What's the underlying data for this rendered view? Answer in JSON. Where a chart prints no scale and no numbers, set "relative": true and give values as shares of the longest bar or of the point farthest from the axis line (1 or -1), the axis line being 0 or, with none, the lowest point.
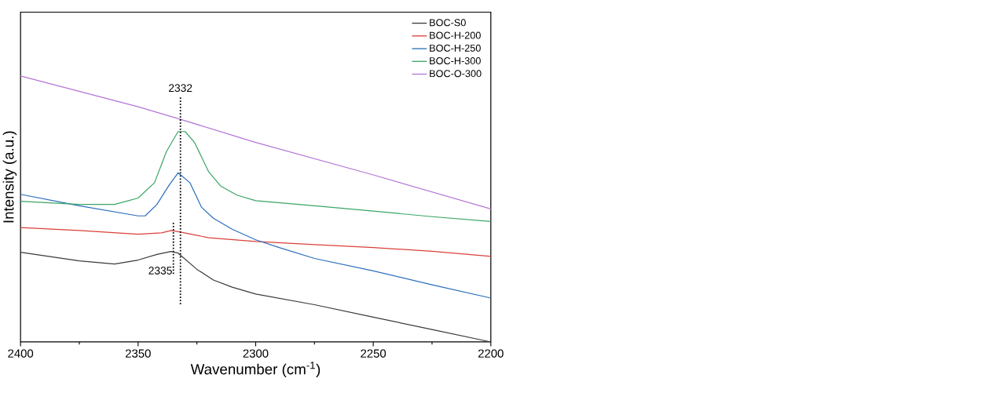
{
  "chart_data": {
    "type": "line",
    "xlabel": "Wavenumber (cm$^{-1}$)",
    "ylabel": "Intensity (a.u.)",
    "relative": true,
    "xlim": [
      2400,
      2200
    ],
    "xticks": [
      2400,
      2350,
      2300,
      2250,
      2200
    ],
    "legend": "top right",
    "ref_lines": [
      {
        "axis": "x",
        "value": 2332,
        "label": "2332",
        "line_style": "dotted"
      },
      {
        "axis": "x",
        "value": 2335,
        "label": "2335",
        "line_style": "dotted"
      }
    ],
    "series": [
      {
        "name": "BOC-S0",
        "color": "#3a3a3a",
        "x": [
          2400,
          2375,
          2360,
          2350,
          2342,
          2336,
          2333,
          2325,
          2318,
          2310,
          2300,
          2275,
          2250,
          2225,
          2200
        ],
        "values": [
          0.337,
          0.305,
          0.293,
          0.308,
          0.329,
          0.34,
          0.334,
          0.273,
          0.233,
          0.206,
          0.18,
          0.14,
          0.093,
          0.047,
          0.0
        ]
      },
      {
        "name": "BOC-H-200",
        "color": "#d9403a",
        "x": [
          2400,
          2375,
          2350,
          2340,
          2336,
          2332,
          2320,
          2300,
          2275,
          2250,
          2225,
          2200
        ],
        "values": [
          0.43,
          0.419,
          0.405,
          0.41,
          0.419,
          0.413,
          0.392,
          0.378,
          0.366,
          0.355,
          0.341,
          0.322
        ]
      },
      {
        "name": "BOC-H-250",
        "color": "#2a6ebb",
        "x": [
          2400,
          2375,
          2350,
          2347,
          2342,
          2337,
          2333,
          2328,
          2323,
          2318,
          2310,
          2300,
          2290,
          2275,
          2250,
          2225,
          2200
        ],
        "values": [
          0.555,
          0.512,
          0.474,
          0.474,
          0.517,
          0.587,
          0.636,
          0.599,
          0.506,
          0.465,
          0.424,
          0.384,
          0.355,
          0.314,
          0.267,
          0.215,
          0.165
        ]
      },
      {
        "name": "BOC-H-300",
        "color": "#3aa565",
        "x": [
          2400,
          2375,
          2360,
          2350,
          2343,
          2338,
          2333,
          2330,
          2326,
          2320,
          2315,
          2308,
          2300,
          2275,
          2250,
          2225,
          2200
        ],
        "values": [
          0.529,
          0.517,
          0.517,
          0.541,
          0.599,
          0.715,
          0.791,
          0.791,
          0.75,
          0.64,
          0.587,
          0.552,
          0.531,
          0.512,
          0.492,
          0.471,
          0.453
        ]
      },
      {
        "name": "BOC-O-300",
        "color": "#b576d6",
        "x": [
          2400,
          2350,
          2332,
          2300,
          2250,
          2200
        ],
        "values": [
          1.0,
          0.884,
          0.837,
          0.75,
          0.628,
          0.5
        ]
      }
    ]
  }
}
